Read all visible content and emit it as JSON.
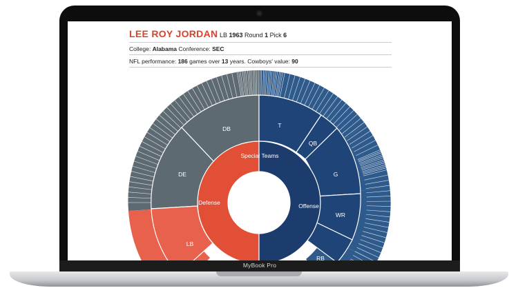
{
  "laptop": {
    "brand": "MyBook Pro"
  },
  "player": {
    "name": "LEE ROY JORDAN",
    "position": "LB",
    "year": "1963",
    "round_label": "Round",
    "round": "1",
    "pick_label": "Pick",
    "pick": "6",
    "college_label": "College:",
    "college": "Alabama",
    "conference_label": "Conference:",
    "conference": "SEC",
    "perf_label": "NFL performance:",
    "games": "186",
    "games_label": "games over",
    "years": "13",
    "years_label": "years. Cowboys' value:",
    "value": "90"
  },
  "chart_data": {
    "type": "sunburst",
    "colors": {
      "defense": "#e24f37",
      "offense": "#1d3c6e",
      "special": "#2a5a94",
      "defense_outer": "#5e6a72",
      "offense_outer": "#2f5a8c",
      "highlight": "#e8614d"
    },
    "inner_ring": [
      {
        "label": "Defense",
        "group": "defense"
      },
      {
        "label": "Offense",
        "group": "offense"
      },
      {
        "label": "Special Teams",
        "group": "special"
      }
    ],
    "middle_ring": [
      {
        "label": "DB",
        "group": "defense"
      },
      {
        "label": "DE",
        "group": "defense"
      },
      {
        "label": "LB",
        "group": "defense"
      },
      {
        "label": "T",
        "group": "offense"
      },
      {
        "label": "QB",
        "group": "offense"
      },
      {
        "label": "G",
        "group": "offense"
      },
      {
        "label": "WR",
        "group": "offense"
      },
      {
        "label": "RB",
        "group": "offense"
      }
    ]
  }
}
